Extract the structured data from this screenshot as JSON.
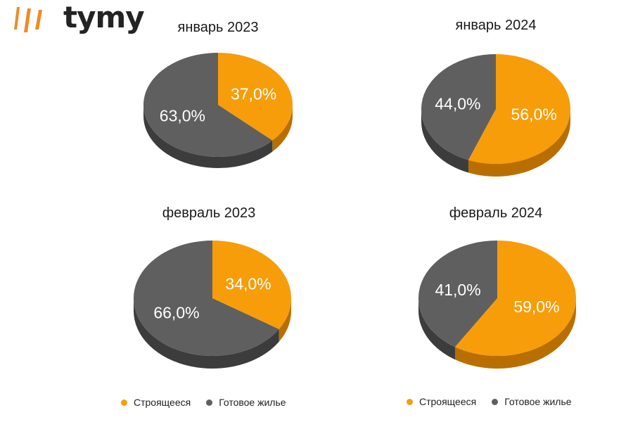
{
  "brand": {
    "name": "tymy",
    "accent": "#f08a24",
    "text_color": "#232323"
  },
  "colors": {
    "building": "#f79d0a",
    "ready": "#5f5f5f"
  },
  "legend": {
    "building": "Строящееся",
    "ready": "Готовое жилье"
  },
  "chart_data": [
    {
      "type": "pie",
      "title": "январь 2023",
      "series": [
        {
          "name": "Строящееся",
          "value": 37.0,
          "label": "37,0%"
        },
        {
          "name": "Готовое жилье",
          "value": 63.0,
          "label": "63,0%"
        }
      ]
    },
    {
      "type": "pie",
      "title": "январь 2024",
      "series": [
        {
          "name": "Строящееся",
          "value": 56.0,
          "label": "56,0%"
        },
        {
          "name": "Готовое жилье",
          "value": 44.0,
          "label": "44,0%"
        }
      ]
    },
    {
      "type": "pie",
      "title": "февраль 2023",
      "series": [
        {
          "name": "Строящееся",
          "value": 34.0,
          "label": "34,0%"
        },
        {
          "name": "Готовое жилье",
          "value": 66.0,
          "label": "66,0%"
        }
      ]
    },
    {
      "type": "pie",
      "title": "февраль 2024",
      "series": [
        {
          "name": "Строящееся",
          "value": 59.0,
          "label": "59,0%"
        },
        {
          "name": "Готовое жилье",
          "value": 41.0,
          "label": "41,0%"
        }
      ]
    }
  ]
}
